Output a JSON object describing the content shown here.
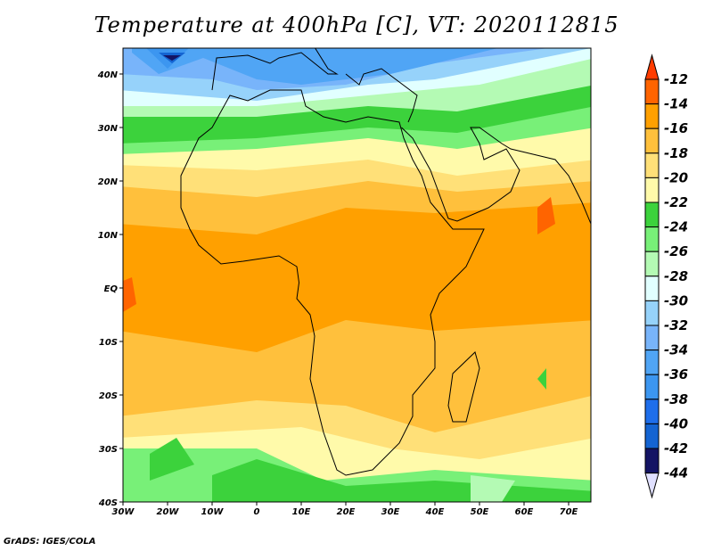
{
  "title": "Temperature at 400hPa [C], VT: 2020112815",
  "footer": "GrADS: IGES/COLA",
  "map": {
    "lon_ticks": [
      "30W",
      "20W",
      "10W",
      "0",
      "10E",
      "20E",
      "30E",
      "40E",
      "50E",
      "60E",
      "70E"
    ],
    "lat_ticks": [
      "40N",
      "30N",
      "20N",
      "10N",
      "EQ",
      "10S",
      "20S",
      "30S",
      "40S"
    ]
  },
  "colorbar": {
    "labels": [
      "-12",
      "-14",
      "-16",
      "-18",
      "-20",
      "-22",
      "-24",
      "-26",
      "-28",
      "-30",
      "-32",
      "-34",
      "-36",
      "-38",
      "-40",
      "-42",
      "-44"
    ],
    "colors": [
      "#ff3c00",
      "#ff6400",
      "#ffa000",
      "#ffc03c",
      "#ffe078",
      "#fffaaa",
      "#3cd23c",
      "#78f078",
      "#b4fab4",
      "#e1ffff",
      "#96d2fa",
      "#78b4fa",
      "#50a5f5",
      "#3c96f0",
      "#1e6eeb",
      "#1464d2",
      "#141464",
      "#e0e0ff"
    ]
  }
}
